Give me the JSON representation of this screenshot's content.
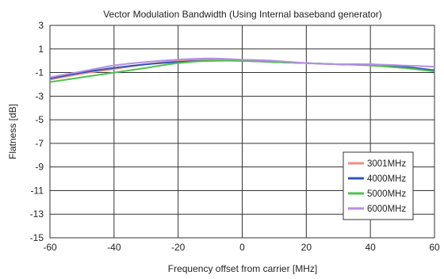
{
  "chart_data": {
    "type": "line",
    "title": "Vector Modulation Bandwidth (Using Internal baseband generator)",
    "xlabel": "Frequency offset from carrier [MHz]",
    "ylabel": "Flatness [dB]",
    "xlim": [
      -60,
      60
    ],
    "ylim": [
      -15,
      3
    ],
    "xticks": [
      -60,
      -40,
      -20,
      0,
      20,
      40,
      60
    ],
    "yticks": [
      3,
      1,
      -1,
      -3,
      -5,
      -7,
      -9,
      -11,
      -13,
      -15
    ],
    "grid": true,
    "legend_position": "bottom-right",
    "series": [
      {
        "name": "3001MHz",
        "color": "#f0907a",
        "x": [
          -60,
          -50,
          -40,
          -30,
          -20,
          -10,
          0,
          10,
          20,
          30,
          40,
          50,
          60
        ],
        "y": [
          -1.6,
          -1.1,
          -0.7,
          -0.3,
          0.0,
          0.1,
          0.0,
          -0.1,
          -0.2,
          -0.3,
          -0.4,
          -0.6,
          -0.9
        ]
      },
      {
        "name": "4000MHz",
        "color": "#2f55b8",
        "x": [
          -60,
          -50,
          -40,
          -30,
          -20,
          -10,
          0,
          10,
          20,
          30,
          40,
          50,
          60
        ],
        "y": [
          -1.5,
          -1.0,
          -0.6,
          -0.3,
          -0.1,
          0.0,
          0.0,
          -0.1,
          -0.2,
          -0.3,
          -0.3,
          -0.5,
          -0.8
        ]
      },
      {
        "name": "5000MHz",
        "color": "#4fc24f",
        "x": [
          -60,
          -50,
          -40,
          -30,
          -20,
          -10,
          0,
          10,
          20,
          30,
          40,
          50,
          60
        ],
        "y": [
          -1.8,
          -1.4,
          -1.0,
          -0.6,
          -0.2,
          0.0,
          0.0,
          -0.1,
          -0.2,
          -0.3,
          -0.4,
          -0.6,
          -0.9
        ]
      },
      {
        "name": "6000MHz",
        "color": "#b58ee6",
        "x": [
          -60,
          -50,
          -40,
          -30,
          -20,
          -10,
          0,
          10,
          20,
          30,
          40,
          50,
          60
        ],
        "y": [
          -1.4,
          -0.9,
          -0.4,
          -0.1,
          0.1,
          0.2,
          0.1,
          0.0,
          -0.2,
          -0.3,
          -0.3,
          -0.4,
          -0.5
        ]
      }
    ]
  }
}
